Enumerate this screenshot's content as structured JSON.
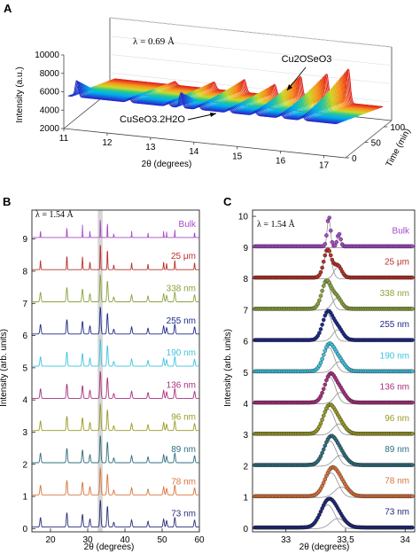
{
  "panels": [
    {
      "label": "A",
      "lambda": "λ = 0.69 Å",
      "zlabel": "Intensity (a.u.)",
      "xlabel": "2θ (degrees)",
      "ylabel": "Time (min)",
      "x_ticks": [
        "11",
        "12",
        "13",
        "14",
        "15",
        "16",
        "17"
      ],
      "z_ticks": [
        "2000",
        "4000",
        "6000",
        "8000",
        "10000"
      ],
      "t_ticks": [
        "0",
        "50",
        "100"
      ],
      "annotations": [
        "Cu2OSeO3",
        "CuSeO3.2H2O"
      ]
    },
    {
      "label": "B",
      "lambda": "λ = 1.54 Å",
      "xlabel": "2θ (degrees)",
      "ylabel": "Intensity (arb. units)",
      "x_ticks": [
        "20",
        "30",
        "40",
        "50",
        "60"
      ],
      "y_ticks": [
        "0",
        "1",
        "2",
        "3",
        "4",
        "5",
        "6",
        "7",
        "8",
        "9"
      ]
    },
    {
      "label": "C",
      "lambda": "λ = 1.54 Å",
      "xlabel": "2θ (degrees)",
      "ylabel": "Intensity (arb. units)",
      "x_ticks": [
        "33",
        "33.5",
        "34"
      ],
      "y_ticks": [
        "0",
        "1",
        "2",
        "3",
        "4",
        "5",
        "6",
        "7",
        "8",
        "9",
        "10"
      ]
    }
  ],
  "chart_data": [
    {
      "panel": "A",
      "type": "area",
      "title": "",
      "xlabel": "2θ (degrees)",
      "ylabel": "Time (min)",
      "zlabel": "Intensity (a.u.)",
      "xlim": [
        11,
        17.5
      ],
      "ylim": [
        0,
        120
      ],
      "zlim": [
        2000,
        10000
      ],
      "peaks_late": [
        {
          "x": 12.5,
          "height": 5200
        },
        {
          "x": 13.4,
          "height": 5600
        },
        {
          "x": 14.1,
          "height": 6200
        },
        {
          "x": 14.8,
          "height": 6000
        },
        {
          "x": 15.4,
          "height": 7200
        },
        {
          "x": 16.0,
          "height": 7800
        },
        {
          "x": 16.5,
          "height": 8600
        }
      ],
      "peaks_early": [
        {
          "x": 11.3,
          "height": 7000
        },
        {
          "x": 11.9,
          "height": 4800
        },
        {
          "x": 13.7,
          "height": 6800
        },
        {
          "x": 15.2,
          "height": 3600
        }
      ],
      "baseline": 5200,
      "colormap": "time (0 blue → 120 red)"
    },
    {
      "panel": "B",
      "type": "line",
      "title": "",
      "xlabel": "2θ (degrees)",
      "ylabel": "Intensity (arb. units)",
      "xlim": [
        15,
        60
      ],
      "ylim": [
        -0.1,
        9.9
      ],
      "highlight_band": [
        32.7,
        34.0
      ],
      "peak_positions": [
        17.3,
        24.4,
        28.6,
        30.6,
        33.4,
        35.3,
        37.0,
        41.8,
        46.2,
        50.4,
        51.2,
        53.4,
        58.7
      ],
      "peak_heights": [
        0.3,
        0.45,
        0.4,
        0.25,
        0.85,
        0.65,
        0.15,
        0.22,
        0.18,
        0.25,
        0.2,
        0.3,
        0.22
      ],
      "series": [
        {
          "name": "73 nm",
          "offset": 0,
          "color": "#2a2e78"
        },
        {
          "name": "78 nm",
          "offset": 1,
          "color": "#d9733a"
        },
        {
          "name": "89 nm",
          "offset": 2,
          "color": "#2e6e7e"
        },
        {
          "name": "96 nm",
          "offset": 3,
          "color": "#9a9a24"
        },
        {
          "name": "136 nm",
          "offset": 4,
          "color": "#a8307e"
        },
        {
          "name": "190 nm",
          "offset": 5,
          "color": "#3fc4e0"
        },
        {
          "name": "255 nm",
          "offset": 6,
          "color": "#1e2a8a"
        },
        {
          "name": "338 nm",
          "offset": 7,
          "color": "#8aa33a"
        },
        {
          "name": "25 μm",
          "offset": 8,
          "color": "#b8322a"
        },
        {
          "name": "Bulk",
          "offset": 9,
          "color": "#a64ac9"
        }
      ]
    },
    {
      "panel": "C",
      "type": "scatter",
      "title": "",
      "xlabel": "2θ (degrees)",
      "ylabel": "Intensity (arb. units)",
      "xlim": [
        32.72,
        34.08
      ],
      "ylim": [
        -0.1,
        10.2
      ],
      "fit_line_color": "#909090",
      "series": [
        {
          "name": "73 nm",
          "offset": 0,
          "color": "#1f2a78",
          "center": 33.35,
          "width": 0.085,
          "height": 0.78
        },
        {
          "name": "78 nm",
          "offset": 1,
          "color": "#d9733a",
          "center": 33.38,
          "width": 0.08,
          "height": 0.8
        },
        {
          "name": "89 nm",
          "offset": 2,
          "color": "#2e6e7e",
          "center": 33.37,
          "width": 0.075,
          "height": 0.82
        },
        {
          "name": "96 nm",
          "offset": 3,
          "color": "#9a9a24",
          "center": 33.36,
          "width": 0.07,
          "height": 0.84
        },
        {
          "name": "136 nm",
          "offset": 4,
          "color": "#a8307e",
          "center": 33.37,
          "width": 0.065,
          "height": 0.86
        },
        {
          "name": "190 nm",
          "offset": 5,
          "color": "#3fc4e0",
          "center": 33.36,
          "width": 0.065,
          "height": 0.82
        },
        {
          "name": "255 nm",
          "offset": 6,
          "color": "#1e2a8a",
          "center": 33.35,
          "width": 0.06,
          "height": 0.88
        },
        {
          "name": "338 nm",
          "offset": 7,
          "color": "#8aa33a",
          "center": 33.34,
          "width": 0.055,
          "height": 0.88
        },
        {
          "name": "25 μm",
          "offset": 8,
          "color": "#b8322a",
          "center": 33.35,
          "width": 0.045,
          "height": 0.9
        },
        {
          "name": "Bulk",
          "offset": 9,
          "color": "#a64ac9",
          "center": 33.36,
          "width": 0.02,
          "height": 0.95
        }
      ]
    }
  ]
}
